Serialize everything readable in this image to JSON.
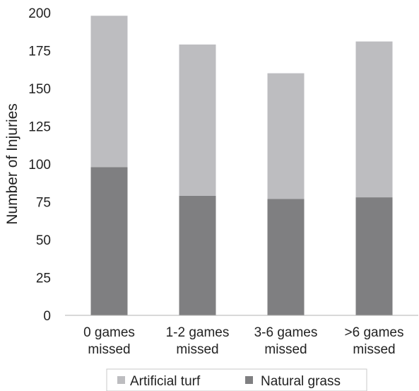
{
  "chart_data": {
    "type": "bar",
    "stacked": true,
    "categories": [
      "0 games missed",
      "1-2 games missed",
      "3-6 games missed",
      ">6 games missed"
    ],
    "category_lines": [
      [
        "0 games",
        "missed"
      ],
      [
        "1-2 games",
        "missed"
      ],
      [
        "3-6 games",
        "missed"
      ],
      [
        ">6 games",
        "missed"
      ]
    ],
    "series": [
      {
        "name": "Natural grass",
        "values": [
          98,
          79,
          77,
          78
        ],
        "color": "#7f7f81"
      },
      {
        "name": "Artificial turf",
        "values": [
          100,
          100,
          83,
          103
        ],
        "color": "#bdbdc0"
      }
    ],
    "legend_order": [
      "Artificial turf",
      "Natural grass"
    ],
    "ylabel": "Number of Injuries",
    "xlabel": "",
    "ylim": [
      0,
      200
    ],
    "yticks": [
      0,
      25,
      50,
      75,
      100,
      125,
      150,
      175,
      200
    ],
    "grid": false,
    "legend_position": "bottom"
  }
}
